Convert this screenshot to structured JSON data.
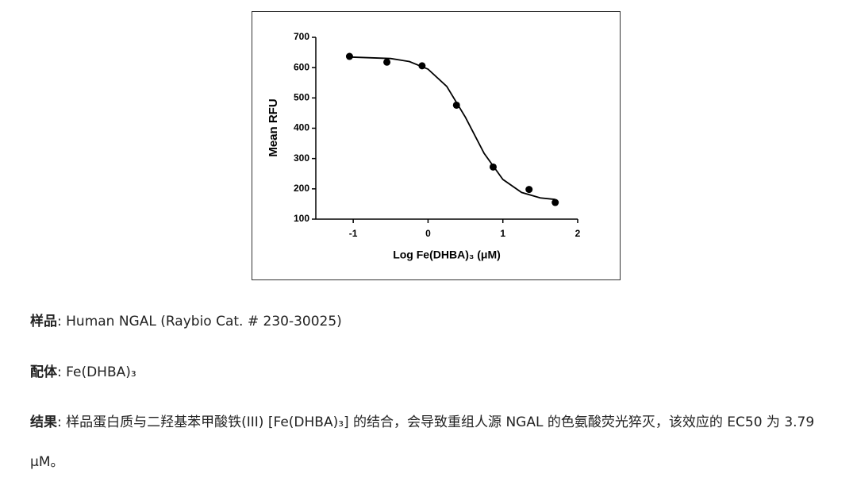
{
  "chart_data": {
    "type": "scatter",
    "x_label": "Log Fe(DHBA)₃ (μM)",
    "y_label": "Mean RFU",
    "x": [
      -1.05,
      -0.55,
      -0.08,
      0.38,
      0.87,
      1.35,
      1.7
    ],
    "values": [
      637,
      618,
      606,
      476,
      272,
      198,
      155
    ],
    "fit": {
      "x": [
        -1.05,
        -0.5,
        -0.25,
        0,
        0.25,
        0.5,
        0.75,
        1,
        1.25,
        1.5,
        1.7
      ],
      "values": [
        635,
        630,
        620,
        595,
        538,
        436,
        317,
        231,
        188,
        170,
        165
      ]
    },
    "color": "#000000",
    "xlim": [
      -1.5,
      2
    ],
    "xticks": [
      -1,
      0,
      1,
      2
    ],
    "ylim": [
      100,
      700
    ],
    "yticks": [
      100,
      200,
      300,
      400,
      500,
      600,
      700
    ]
  },
  "paragraphs": [
    {
      "label": "样品",
      "text": ": Human NGAL (Raybio Cat. # 230-30025)"
    },
    {
      "label": "配体",
      "text": ": Fe(DHBA)₃"
    },
    {
      "label": "结果",
      "text": ": 样品蛋白质与二羟基苯甲酸铁(III) [Fe(DHBA)₃] 的结合，会导致重组人源 NGAL 的色氨酸荧光猝灭，该效应的 EC50 为 3.79 μM。"
    }
  ]
}
